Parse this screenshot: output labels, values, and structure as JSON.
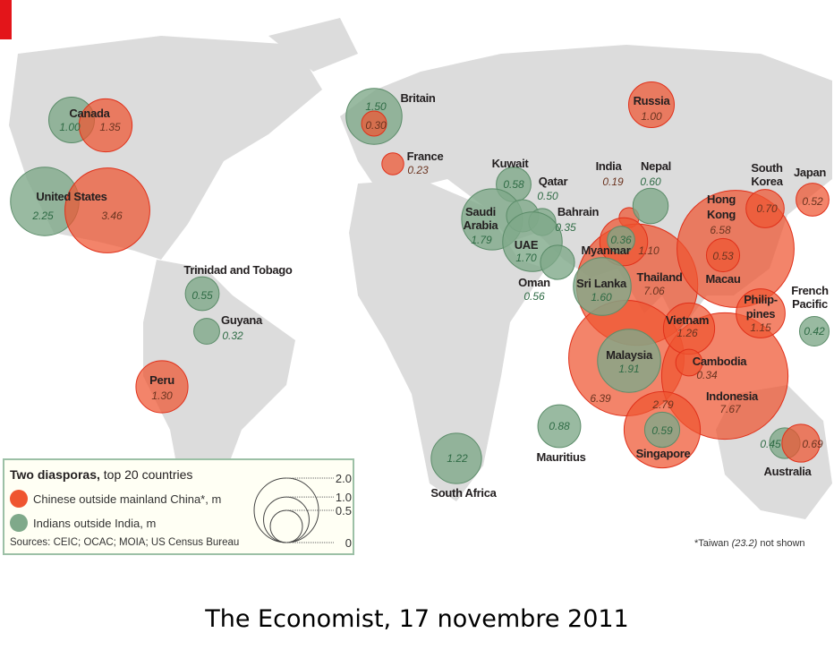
{
  "colors": {
    "chinese": "#ef5530",
    "indian": "#7fa98a",
    "land": "#dcdcdc",
    "tag": "#e3151a"
  },
  "bubbles": [
    {
      "country": "Canada",
      "group": "indian",
      "value": 1.0,
      "label": "1.00"
    },
    {
      "country": "Canada",
      "group": "chinese",
      "value": 1.35,
      "label": "1.35"
    },
    {
      "country": "United States",
      "group": "indian",
      "value": 2.25,
      "label": "2.25"
    },
    {
      "country": "United States",
      "group": "chinese",
      "value": 3.46,
      "label": "3.46"
    },
    {
      "country": "Trinidad and Tobago",
      "group": "indian",
      "value": 0.55,
      "label": "0.55"
    },
    {
      "country": "Guyana",
      "group": "indian",
      "value": 0.32,
      "label": "0.32"
    },
    {
      "country": "Peru",
      "group": "chinese",
      "value": 1.3,
      "label": "1.30"
    },
    {
      "country": "Britain",
      "group": "indian",
      "value": 1.5,
      "label": "1.50"
    },
    {
      "country": "Britain",
      "group": "chinese",
      "value": 0.3,
      "label": "0.30"
    },
    {
      "country": "France",
      "group": "chinese",
      "value": 0.23,
      "label": "0.23"
    },
    {
      "country": "Russia",
      "group": "chinese",
      "value": 1.0,
      "label": "1.00"
    },
    {
      "country": "Kuwait",
      "group": "indian",
      "value": 0.58,
      "label": "0.58"
    },
    {
      "country": "Saudi Arabia",
      "group": "indian",
      "value": 1.79,
      "label": "1.79"
    },
    {
      "country": "Qatar",
      "group": "indian",
      "value": 0.5,
      "label": "0.50"
    },
    {
      "country": "Bahrain",
      "group": "indian",
      "value": 0.35,
      "label": "0.35"
    },
    {
      "country": "UAE",
      "group": "indian",
      "value": 1.7,
      "label": "1.70"
    },
    {
      "country": "Oman",
      "group": "indian",
      "value": 0.56,
      "label": "0.56"
    },
    {
      "country": "India",
      "group": "chinese",
      "value": 0.19,
      "label": "0.19"
    },
    {
      "country": "Nepal",
      "group": "indian",
      "value": 0.6,
      "label": "0.60"
    },
    {
      "country": "Thailand",
      "group": "chinese",
      "value": 7.06,
      "label": "7.06"
    },
    {
      "country": "Malaysia",
      "group": "chinese",
      "value": 6.39,
      "label": "6.39"
    },
    {
      "country": "Indonesia",
      "group": "chinese",
      "value": 7.67,
      "label": "7.67"
    },
    {
      "country": "Hong Kong",
      "group": "chinese",
      "value": 6.58,
      "label": "6.58"
    },
    {
      "country": "Myanmar",
      "group": "chinese",
      "value": 1.1,
      "label": "1.10"
    },
    {
      "country": "Myanmar",
      "group": "indian",
      "value": 0.36,
      "label": "0.36"
    },
    {
      "country": "Sri Lanka",
      "group": "indian",
      "value": 1.6,
      "label": "1.60"
    },
    {
      "country": "Singapore",
      "group": "chinese",
      "value": 2.79,
      "label": "2.79"
    },
    {
      "country": "Singapore",
      "group": "indian",
      "value": 0.59,
      "label": "0.59"
    },
    {
      "country": "Malaysia",
      "group": "indian",
      "value": 1.91,
      "label": "1.91"
    },
    {
      "country": "Vietnam",
      "group": "chinese",
      "value": 1.26,
      "label": "1.26"
    },
    {
      "country": "Cambodia",
      "group": "chinese",
      "value": 0.34,
      "label": "0.34"
    },
    {
      "country": "Macau",
      "group": "chinese",
      "value": 0.53,
      "label": "0.53"
    },
    {
      "country": "South Korea",
      "group": "chinese",
      "value": 0.7,
      "label": "0.70"
    },
    {
      "country": "Japan",
      "group": "chinese",
      "value": 0.52,
      "label": "0.52"
    },
    {
      "country": "Philippines",
      "group": "chinese",
      "value": 1.15,
      "label": "1.15"
    },
    {
      "country": "French Pacific",
      "group": "indian",
      "value": 0.42,
      "label": "0.42"
    },
    {
      "country": "Mauritius",
      "group": "indian",
      "value": 0.88,
      "label": "0.88"
    },
    {
      "country": "South Africa",
      "group": "indian",
      "value": 1.22,
      "label": "1.22"
    },
    {
      "country": "Australia",
      "group": "indian",
      "value": 0.45,
      "label": "0.45"
    },
    {
      "country": "Australia",
      "group": "chinese",
      "value": 0.69,
      "label": "0.69"
    }
  ],
  "names": [
    "Canada",
    "United States",
    "Trinidad and Tobago",
    "Guyana",
    "Peru",
    "Britain",
    "France",
    "Russia",
    "Kuwait",
    "Qatar",
    "Bahrain",
    "Saudi",
    "Arabia",
    "UAE",
    "Oman",
    "India",
    "Nepal",
    "Myanmar",
    "Sri Lanka",
    "Thailand",
    "Hong",
    "Kong",
    "South",
    "Korea",
    "Japan",
    "Macau",
    "French",
    "Pacific",
    "Philip-",
    "pines",
    "Vietnam",
    "Malaysia",
    "Cambodia",
    "Indonesia",
    "Singapore",
    "Mauritius",
    "South Africa",
    "Australia"
  ],
  "legend": {
    "title_bold": "Two diasporas,",
    "title_rest": " top 20 countries",
    "chinese": "Chinese outside mainland China*, m",
    "indian": "Indians outside India, m",
    "sources": "Sources: CEIC; OCAC; MOIA; US Census Bureau",
    "scale": [
      {
        "value": 2.0,
        "label": "2.0"
      },
      {
        "value": 1.0,
        "label": "1.0"
      },
      {
        "value": 0.5,
        "label": "0.5"
      },
      {
        "value": 0,
        "label": "0"
      }
    ]
  },
  "footnote": {
    "pre": "*Taiwan ",
    "value": "(23.2)",
    "post": " not shown"
  },
  "caption": "The Economist, 17 novembre 2011"
}
